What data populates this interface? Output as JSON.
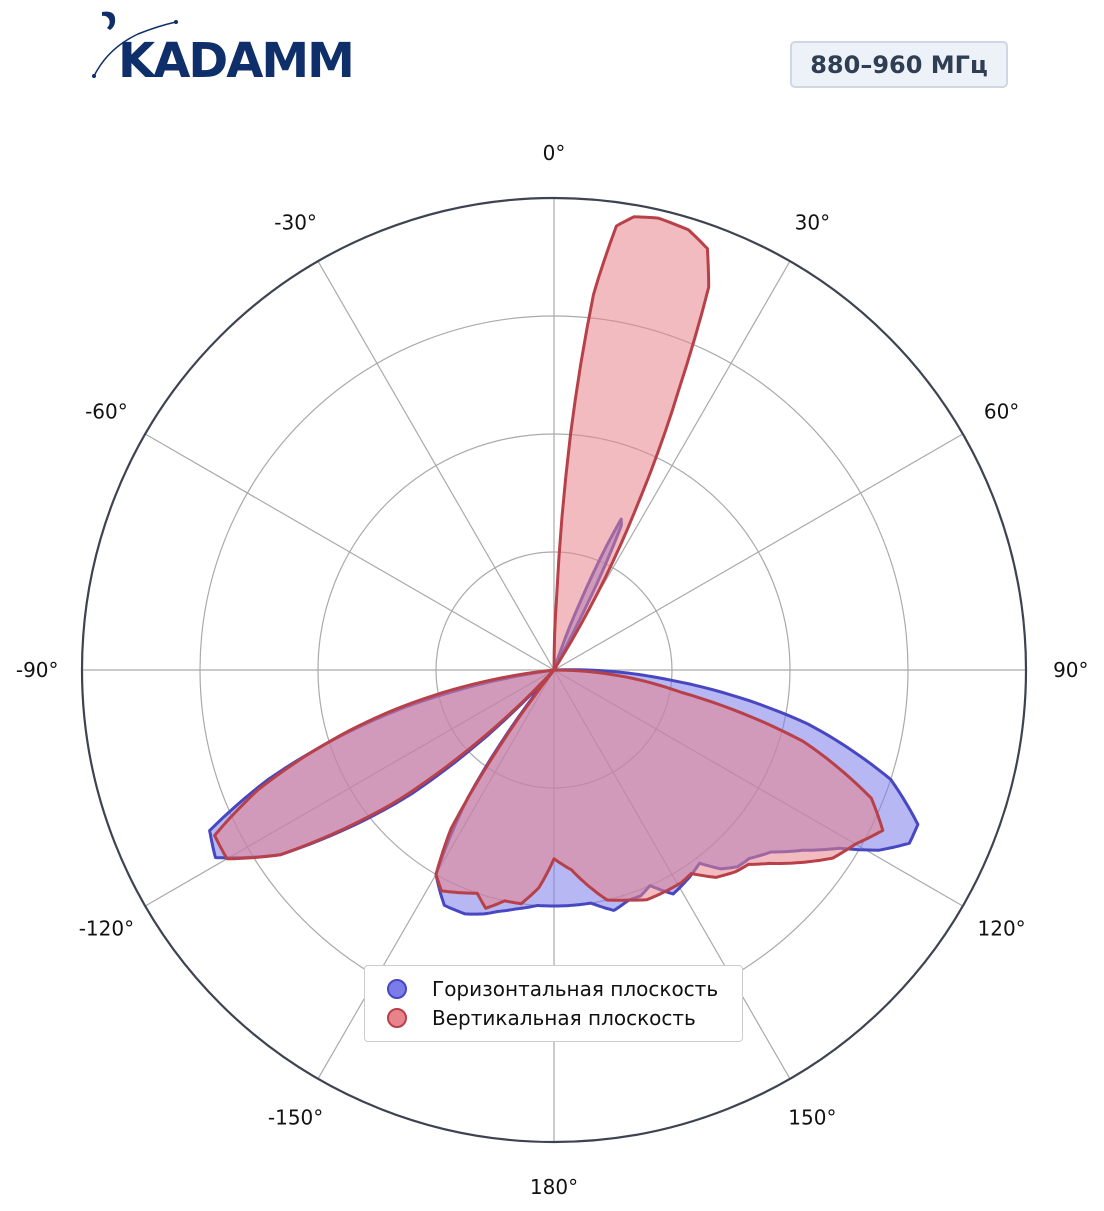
{
  "header": {
    "logo_text": "KADAMM",
    "frequency_badge": "880–960 МГц",
    "brand_color": "#0f2f6b"
  },
  "chart_data": {
    "type": "polar",
    "title": "",
    "angle_zero": "top",
    "angle_direction": "clockwise",
    "angle_unit": "deg",
    "angle_tick_labels": [
      "0°",
      "30°",
      "60°",
      "90°",
      "120°",
      "150°",
      "180°",
      "-150°",
      "-120°",
      "-90°",
      "-60°",
      "-30°"
    ],
    "radial_range": [
      0,
      4
    ],
    "radial_gridlines": [
      1,
      2,
      3,
      4
    ],
    "radial_tick_labels_visible": false,
    "grid": true,
    "legend_position": "lower-center",
    "series": [
      {
        "name": "Горизонтальная плоскость",
        "color": "#4747c2",
        "fill": "#7b7bea",
        "points": [
          [
            18,
            0.0
          ],
          [
            21,
            0.6
          ],
          [
            23,
            1.15
          ],
          [
            24,
            1.4
          ],
          [
            25,
            1.35
          ],
          [
            26.5,
            0.8
          ],
          [
            28,
            0.0
          ],
          [
            88,
            0.0
          ],
          [
            95,
            1.0
          ],
          [
            102,
            2.2
          ],
          [
            108,
            3.0
          ],
          [
            113,
            3.35
          ],
          [
            116,
            3.35
          ],
          [
            119,
            3.15
          ],
          [
            122,
            2.85
          ],
          [
            126,
            2.6
          ],
          [
            130,
            2.4
          ],
          [
            134,
            2.3
          ],
          [
            137,
            2.28
          ],
          [
            140,
            2.2
          ],
          [
            143,
            2.05
          ],
          [
            147,
            2.1
          ],
          [
            152,
            2.15
          ],
          [
            156,
            2.0
          ],
          [
            159,
            2.05
          ],
          [
            162,
            2.05
          ],
          [
            166,
            2.1
          ],
          [
            171,
            2.0
          ],
          [
            176,
            2.0
          ],
          [
            180,
            2.0
          ],
          [
            184,
            2.0
          ],
          [
            189,
            2.05
          ],
          [
            193,
            2.1
          ],
          [
            196,
            2.15
          ],
          [
            200,
            2.2
          ],
          [
            205,
            2.2
          ],
          [
            210,
            2.0
          ],
          [
            214,
            1.3
          ],
          [
            219,
            0.0
          ],
          [
            222,
            0.0
          ],
          [
            229,
            1.6
          ],
          [
            236,
            2.8
          ],
          [
            241,
            3.28
          ],
          [
            245,
            3.22
          ],
          [
            249,
            2.6
          ],
          [
            256,
            1.3
          ],
          [
            262,
            0.0
          ],
          [
            270,
            0.0
          ],
          [
            360,
            0.0
          ]
        ]
      },
      {
        "name": "Вертикальная плоскость",
        "color": "#b84049",
        "fill": "#e8838b",
        "points": [
          [
            0,
            0.0
          ],
          [
            2,
            0.6
          ],
          [
            4,
            2.0
          ],
          [
            6,
            3.2
          ],
          [
            8,
            3.8
          ],
          [
            10,
            3.9
          ],
          [
            13,
            3.93
          ],
          [
            17,
            3.9
          ],
          [
            20,
            3.8
          ],
          [
            22,
            3.5
          ],
          [
            24,
            2.6
          ],
          [
            27,
            1.5
          ],
          [
            32,
            0.0
          ],
          [
            90,
            0.0
          ],
          [
            100,
            1.1
          ],
          [
            106,
            2.2
          ],
          [
            112,
            2.9
          ],
          [
            116,
            3.1
          ],
          [
            120,
            2.95
          ],
          [
            124,
            2.85
          ],
          [
            128,
            2.65
          ],
          [
            132,
            2.45
          ],
          [
            135,
            2.33
          ],
          [
            138,
            2.3
          ],
          [
            142,
            2.23
          ],
          [
            146,
            2.08
          ],
          [
            149,
            2.1
          ],
          [
            153,
            2.1
          ],
          [
            158,
            2.1
          ],
          [
            162,
            2.05
          ],
          [
            167,
            2.0
          ],
          [
            171,
            1.85
          ],
          [
            175,
            1.7
          ],
          [
            180,
            1.6
          ],
          [
            184,
            1.85
          ],
          [
            188,
            2.0
          ],
          [
            192,
            2.0
          ],
          [
            196,
            2.1
          ],
          [
            199,
            2.0
          ],
          [
            203,
            2.05
          ],
          [
            207,
            2.1
          ],
          [
            210,
            2.0
          ],
          [
            213,
            1.6
          ],
          [
            218,
            0.0
          ],
          [
            223,
            0.0
          ],
          [
            230,
            1.7
          ],
          [
            236,
            2.8
          ],
          [
            240,
            3.2
          ],
          [
            244,
            3.2
          ],
          [
            248,
            2.7
          ],
          [
            256,
            1.4
          ],
          [
            264,
            0.0
          ],
          [
            270,
            0.0
          ],
          [
            360,
            0.0
          ]
        ]
      }
    ]
  }
}
